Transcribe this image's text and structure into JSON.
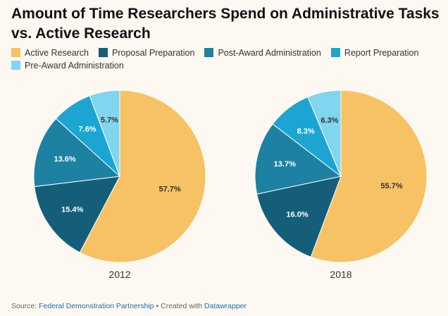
{
  "title": "Amount of Time Researchers Spend on Administrative Tasks vs. Active Research",
  "footer": {
    "source_prefix": "Source: ",
    "source_name": "Federal Demonstration Partnership",
    "credit_prefix": " • Created with ",
    "credit_name": "Datawrapper"
  },
  "chart_data": {
    "type": "pie",
    "legend_position": "top",
    "categories": [
      {
        "name": "Active Research",
        "color": "#f6c264"
      },
      {
        "name": "Proposal Preparation",
        "color": "#155e79"
      },
      {
        "name": "Post-Award Administration",
        "color": "#1d81a2"
      },
      {
        "name": "Report Preparation",
        "color": "#1ca5d3"
      },
      {
        "name": "Pre-Award Administration",
        "color": "#7fd6ee"
      }
    ],
    "pies": [
      {
        "label": "2012",
        "values": [
          57.7,
          15.4,
          13.6,
          7.6,
          5.7
        ],
        "value_labels": [
          "57.7%",
          "15.4%",
          "13.6%",
          "7.6%",
          "5.7%"
        ]
      },
      {
        "label": "2018",
        "values": [
          55.7,
          16.0,
          13.7,
          8.3,
          6.3
        ],
        "value_labels": [
          "55.7%",
          "16.0%",
          "13.7%",
          "8.3%",
          "6.3%"
        ]
      }
    ]
  }
}
